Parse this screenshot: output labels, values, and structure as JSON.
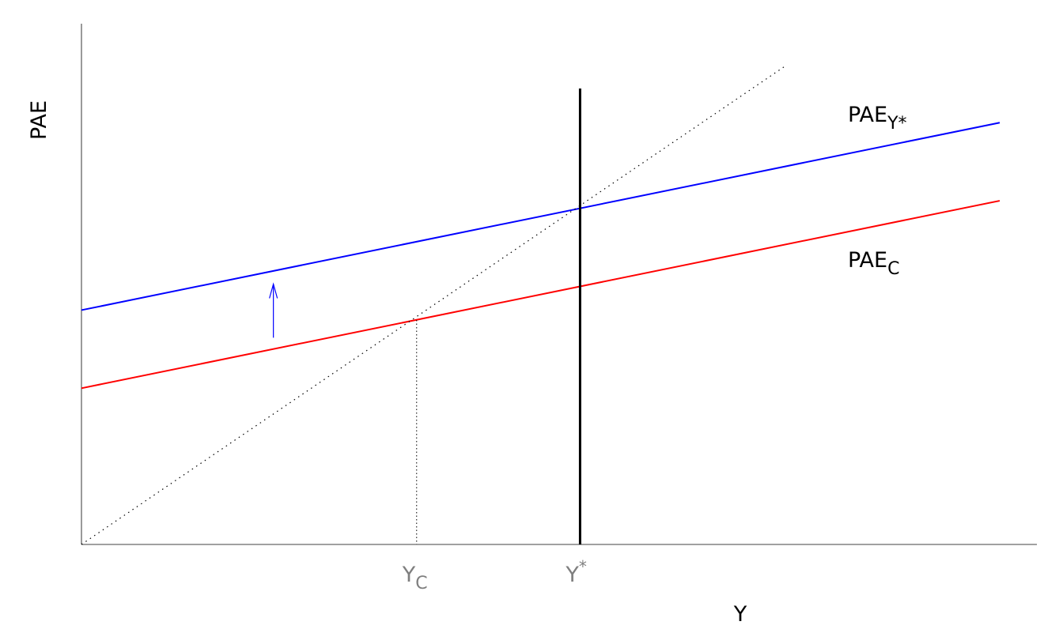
{
  "chart_data": {
    "type": "line",
    "xlabel": "Y",
    "ylabel": "PAE",
    "xlim": [
      0,
      1
    ],
    "ylim": [
      0,
      1
    ],
    "grid": false,
    "series": [
      {
        "name": "PAE_Y*",
        "label_main": "PAE",
        "label_sub": "Y*",
        "color": "#0000ff",
        "x": [
          0,
          1
        ],
        "y": [
          0.45,
          0.81
        ]
      },
      {
        "name": "PAE_C",
        "label_main": "PAE",
        "label_sub": "C",
        "color": "#ff0000",
        "x": [
          0,
          1
        ],
        "y": [
          0.3,
          0.66
        ]
      },
      {
        "name": "45-degree line",
        "color": "#000000",
        "style": "dotted",
        "x": [
          0,
          0.765
        ],
        "y": [
          0,
          0.917
        ]
      }
    ],
    "markers": [
      {
        "label_main": "Y",
        "label_sub": "C",
        "x": 0.365,
        "y": 0.431,
        "color": "#7f7f7f"
      },
      {
        "label_main": "Y",
        "label_sup": "*",
        "x": 0.543,
        "color": "#7f7f7f"
      }
    ],
    "annotations": [
      {
        "type": "arrow",
        "color": "#0000ff",
        "x": 0.209,
        "y_from": 0.397,
        "y_to": 0.5
      }
    ]
  }
}
